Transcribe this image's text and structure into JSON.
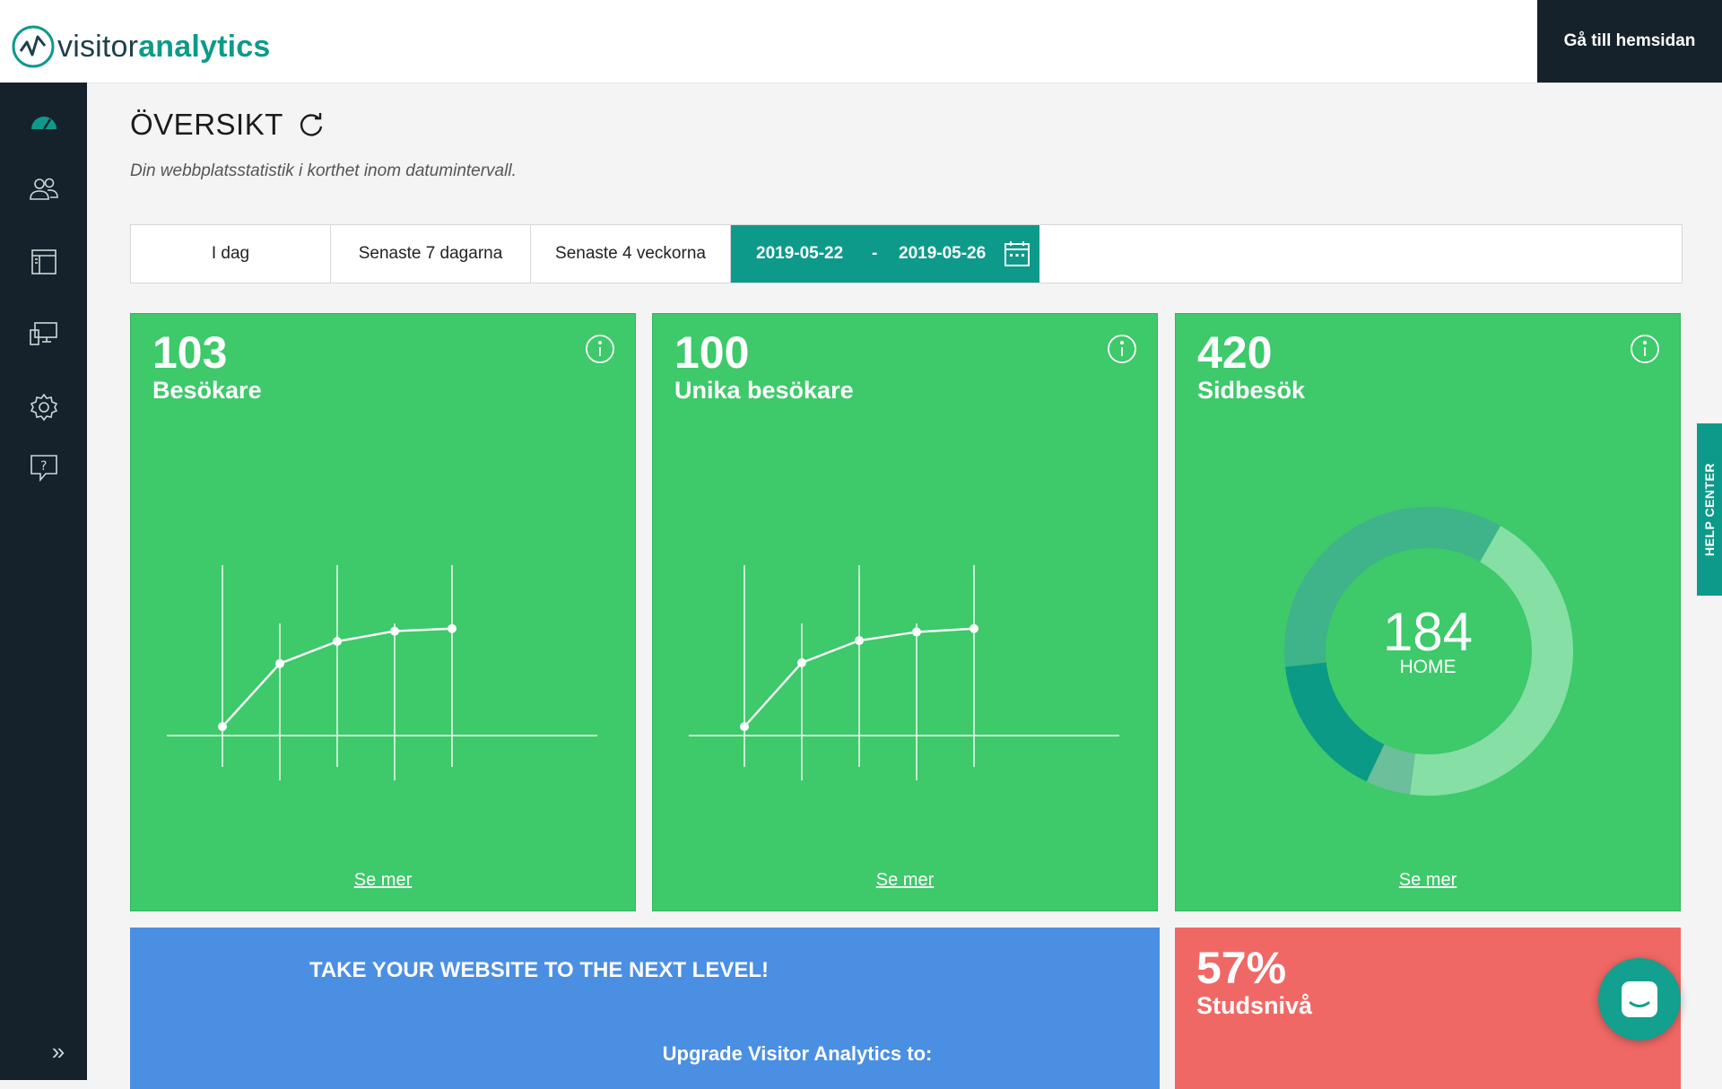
{
  "header": {
    "logo_part1": "visitor",
    "logo_part2": "analytics",
    "home_button": "Gå till hemsidan"
  },
  "sidebar": {
    "items": [
      {
        "icon": "dashboard-icon",
        "active": true
      },
      {
        "icon": "users-icon"
      },
      {
        "icon": "pages-icon"
      },
      {
        "icon": "devices-icon"
      },
      {
        "icon": "settings-icon"
      },
      {
        "icon": "help-icon"
      }
    ],
    "expand_icon": "»"
  },
  "page": {
    "title": "ÖVERSIKT",
    "subtitle": "Din webbplatsstatistik i korthet inom datumintervall."
  },
  "date_range": {
    "options": [
      "I dag",
      "Senaste 7 dagarna",
      "Senaste 4 veckorna"
    ],
    "start": "2019-05-22",
    "separator": "-",
    "end": "2019-05-26"
  },
  "cards": [
    {
      "value": "103",
      "label": "Besökare",
      "more": "Se mer"
    },
    {
      "value": "100",
      "label": "Unika besökare",
      "more": "Se mer"
    },
    {
      "value": "420",
      "label": "Sidbesök",
      "more": "Se mer",
      "center_value": "184",
      "center_label": "HOME"
    }
  ],
  "promo": {
    "heading": "TAKE YOUR WEBSITE TO THE NEXT LEVEL!",
    "subheading": "Upgrade Visitor Analytics to:"
  },
  "bounce": {
    "value": "57%",
    "label": "Studsnivå"
  },
  "help_center": "HELP CENTER",
  "colors": {
    "accent": "#0e9a8a",
    "sidebar": "#15222b",
    "card_green": "#3ec96a",
    "promo_blue": "#4a8fe2",
    "bounce_red": "#f06865"
  },
  "chart_data": [
    {
      "type": "line",
      "points": [
        0.0,
        0.37,
        0.5,
        0.56,
        0.575
      ],
      "note_ref": "card-0"
    },
    {
      "type": "line",
      "points": [
        0.0,
        0.375,
        0.505,
        0.555,
        0.575
      ],
      "note_ref": "card-1"
    },
    {
      "type": "pie",
      "slices": [
        {
          "value": 184,
          "color": "#86dfa5"
        },
        {
          "value": 21,
          "color": "#6bbf9a"
        },
        {
          "value": 68,
          "color": "#0a9a86"
        },
        {
          "value": 147,
          "color": "#3fb389"
        }
      ]
    }
  ]
}
